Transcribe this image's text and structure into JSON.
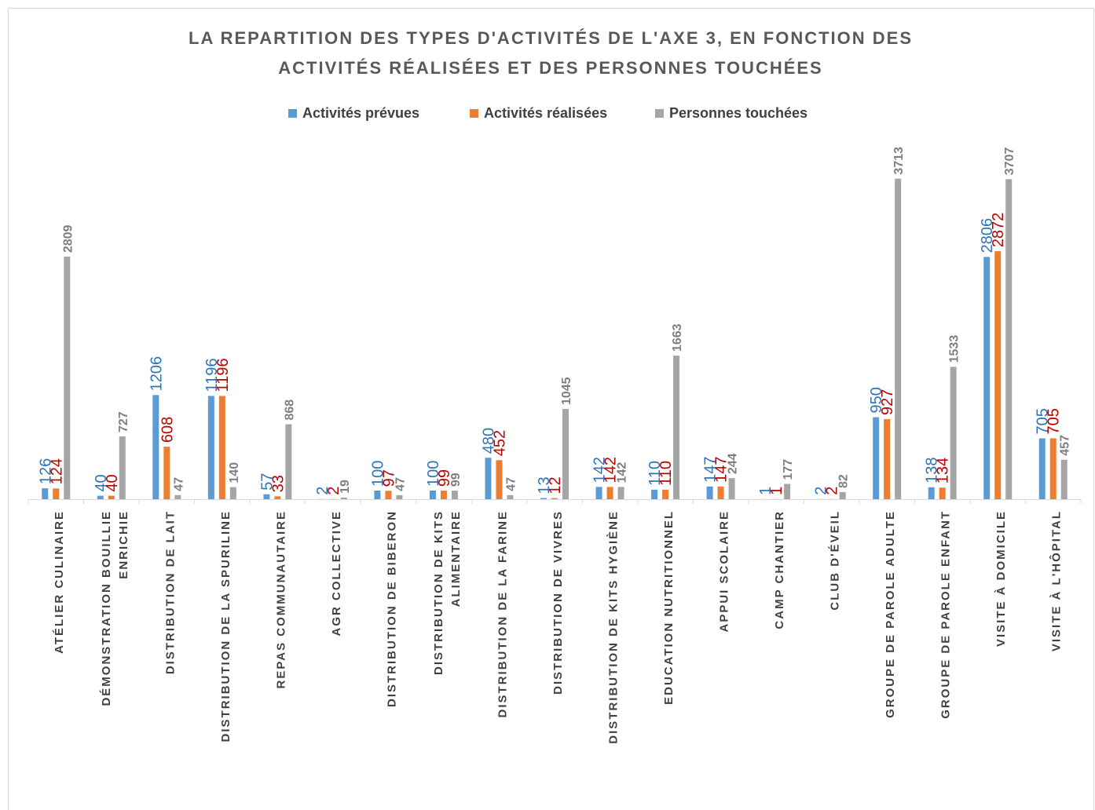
{
  "chart_data": {
    "type": "bar",
    "title": "LA REPARTITION DES TYPES D'ACTIVITÉS DE L'AXE 3, EN FONCTION DES ACTIVITÉS RÉALISÉES ET DES PERSONNES TOUCHÉES",
    "categories": [
      "ATÉLIER CULINAIRE",
      "DÉMONSTRATION BOUILLIE ENRICHIE",
      "DISTRIBUTION DE LAIT",
      "DISTRIBUTION DE LA SPURILINE",
      "REPAS COMMUNAUTAIRE",
      "AGR COLLECTIVE",
      "DISTRIBUTION DE BIBERON",
      "DISTRIBUTION DE KITS ALIMENTAIRE",
      "DISTRIBUTION DE LA FARINE",
      "DISTRIBUTION DE VIVRES",
      "DISTRIBUTION DE KITS HYGIÈNE",
      "EDUCATION NUTRITIONNEL",
      "APPUI SCOLAIRE",
      "CAMP CHANTIER",
      "CLUB D'ÉVEIL",
      "GROUPE DE PAROLE ADULTE",
      "GROUPE DE PAROLE ENFANT",
      "VISITE À DOMICILE",
      "VISITE À L'HÔPITAL"
    ],
    "series": [
      {
        "name": "Activités prévues",
        "color": "#5b9bd5",
        "label_color": "#2e75b6",
        "values": [
          126,
          40,
          1206,
          1196,
          57,
          2,
          100,
          100,
          480,
          13,
          142,
          110,
          147,
          1,
          2,
          950,
          138,
          2806,
          705
        ]
      },
      {
        "name": "Activités réalisées",
        "color": "#ed7d31",
        "label_color": "#c00000",
        "values": [
          124,
          40,
          608,
          1196,
          33,
          2,
          97,
          99,
          452,
          12,
          142,
          110,
          147,
          1,
          2,
          927,
          134,
          2872,
          705
        ]
      },
      {
        "name": "Personnes touchées",
        "color": "#a5a5a5",
        "label_color": "#7f7f7f",
        "values": [
          2809,
          727,
          47,
          140,
          868,
          19,
          47,
          99,
          47,
          1045,
          142,
          1663,
          244,
          177,
          82,
          3713,
          1533,
          3707,
          457
        ]
      }
    ],
    "ylim": [
      0,
      4000
    ],
    "legend": "top"
  }
}
